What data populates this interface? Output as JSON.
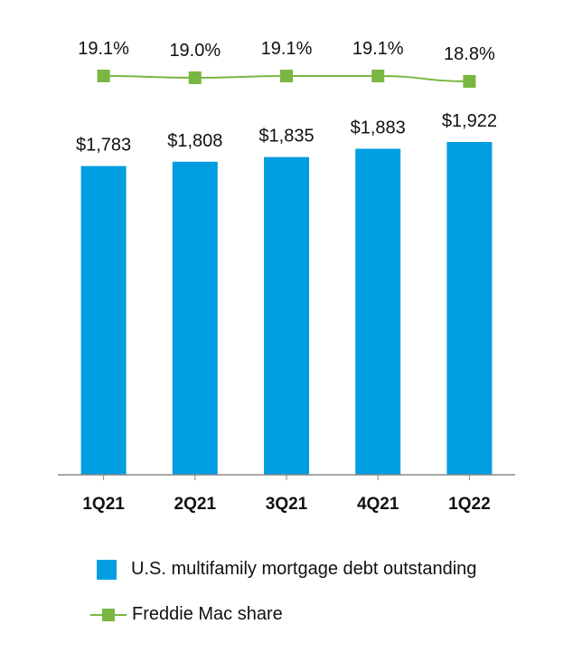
{
  "chart_data": {
    "type": "bar",
    "categories": [
      "1Q21",
      "2Q21",
      "3Q21",
      "4Q21",
      "1Q22"
    ],
    "series": [
      {
        "name": "U.S. multifamily mortgage debt outstanding",
        "type": "bar",
        "values": [
          1783,
          1808,
          1835,
          1883,
          1922
        ],
        "labels": [
          "$1,783",
          "$1,808",
          "$1,835",
          "$1,883",
          "$1,922"
        ],
        "color": "#009ee0"
      },
      {
        "name": "Freddie Mac share",
        "type": "line",
        "values": [
          19.1,
          19.0,
          19.1,
          19.1,
          18.8
        ],
        "labels": [
          "19.1%",
          "19.0%",
          "19.1%",
          "19.1%",
          "18.8%"
        ],
        "color": "#7ab642"
      }
    ],
    "ylim": [
      0,
      1922
    ],
    "grid": false,
    "legend_position": "bottom"
  }
}
